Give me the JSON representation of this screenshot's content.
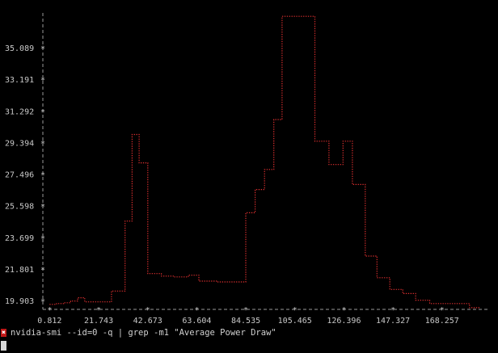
{
  "terminal": {
    "command": "nvidia-smi --id=0 -q | grep -m1 \"Average Power Draw\"",
    "status_symbol": "✖"
  },
  "colors": {
    "background": "#000000",
    "axis": "#9a9a9a",
    "text": "#c8c8c8",
    "series": "#e03030",
    "status": "#c01818"
  },
  "chart_data": {
    "type": "line",
    "style": "step",
    "y_ticks": [
      "19.903",
      "21.801",
      "23.699",
      "25.598",
      "27.496",
      "29.394",
      "31.292",
      "33.191",
      "35.089"
    ],
    "x_ticks": [
      "0.812",
      "21.743",
      "42.673",
      "63.604",
      "84.535",
      "105.465",
      "126.396",
      "147.327",
      "168.257"
    ],
    "xlim": [
      0,
      188
    ],
    "ylim": [
      19.4,
      37.3
    ],
    "grid": false,
    "series": [
      {
        "values": [
          [
            0.8,
            19.7
          ],
          [
            3.8,
            19.75
          ],
          [
            6.8,
            19.8
          ],
          [
            9.8,
            19.9
          ],
          [
            12.8,
            20.1
          ],
          [
            15.8,
            19.85
          ],
          [
            18.8,
            19.85
          ],
          [
            21.7,
            19.85
          ],
          [
            27.2,
            20.5
          ],
          [
            33.0,
            24.7
          ],
          [
            36.0,
            29.9
          ],
          [
            39.0,
            28.2
          ],
          [
            42.7,
            21.55
          ],
          [
            48.5,
            21.4
          ],
          [
            54.0,
            21.35
          ],
          [
            60.0,
            21.45
          ],
          [
            64.5,
            21.1
          ],
          [
            72.0,
            21.05
          ],
          [
            84.5,
            25.2
          ],
          [
            88.5,
            26.6
          ],
          [
            92.5,
            27.8
          ],
          [
            96.5,
            30.8
          ],
          [
            100.0,
            37.0
          ],
          [
            114.0,
            29.5
          ],
          [
            120.0,
            28.1
          ],
          [
            126.0,
            29.5
          ],
          [
            130.0,
            26.9
          ],
          [
            135.5,
            22.6
          ],
          [
            140.5,
            21.3
          ],
          [
            146.0,
            20.6
          ],
          [
            151.5,
            20.35
          ],
          [
            157.0,
            19.95
          ],
          [
            163.0,
            19.75
          ],
          [
            168.3,
            19.75
          ],
          [
            180.0,
            19.5
          ],
          [
            184.5,
            19.5
          ]
        ]
      }
    ]
  }
}
